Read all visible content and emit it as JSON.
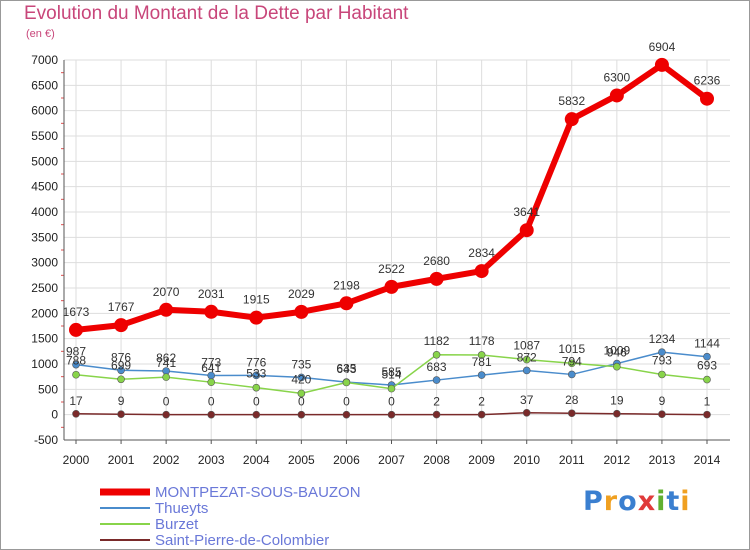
{
  "chart_data": {
    "type": "line",
    "title": "Evolution du Montant de la Dette par Habitant",
    "ylabel": "(en €)",
    "xlabel": "",
    "x": [
      "2000",
      "2001",
      "2002",
      "2003",
      "2004",
      "2005",
      "2006",
      "2007",
      "2008",
      "2009",
      "2010",
      "2011",
      "2012",
      "2013",
      "2014"
    ],
    "ylim": [
      -500,
      7000
    ],
    "yticks": [
      -500,
      0,
      500,
      1000,
      1500,
      2000,
      2500,
      3000,
      3500,
      4000,
      4500,
      5000,
      5500,
      6000,
      6500,
      7000
    ],
    "grid": true,
    "legend_position": "bottom-left",
    "series": [
      {
        "name": "MONTPEZAT-SOUS-BAUZON",
        "color": "#ee0000",
        "values": [
          1673,
          1767,
          2070,
          2031,
          1915,
          2029,
          2198,
          2522,
          2680,
          2834,
          3641,
          5832,
          6300,
          6904,
          6236
        ]
      },
      {
        "name": "Thueyts",
        "color": "#4a8ccc",
        "values": [
          987,
          876,
          862,
          773,
          776,
          735,
          643,
          585,
          683,
          781,
          872,
          794,
          1009,
          1234,
          1144
        ]
      },
      {
        "name": "Burzet",
        "color": "#88d44a",
        "values": [
          788,
          699,
          741,
          641,
          533,
          420,
          635,
          514,
          1182,
          1178,
          1087,
          1015,
          946,
          793,
          693
        ]
      },
      {
        "name": "Saint-Pierre-de-Colombier",
        "color": "#7a2a2a",
        "values": [
          17,
          9,
          0,
          0,
          0,
          0,
          0,
          0,
          2,
          2,
          37,
          28,
          19,
          9,
          1
        ]
      }
    ]
  },
  "brand": {
    "letters": [
      "P",
      "r",
      "o",
      "x",
      "i",
      "t",
      "i"
    ],
    "colors": [
      "#3a7fd0",
      "#f0a020",
      "#3a7fd0",
      "#e03a3a",
      "#60b030",
      "#3a7fd0",
      "#f0a020"
    ]
  }
}
